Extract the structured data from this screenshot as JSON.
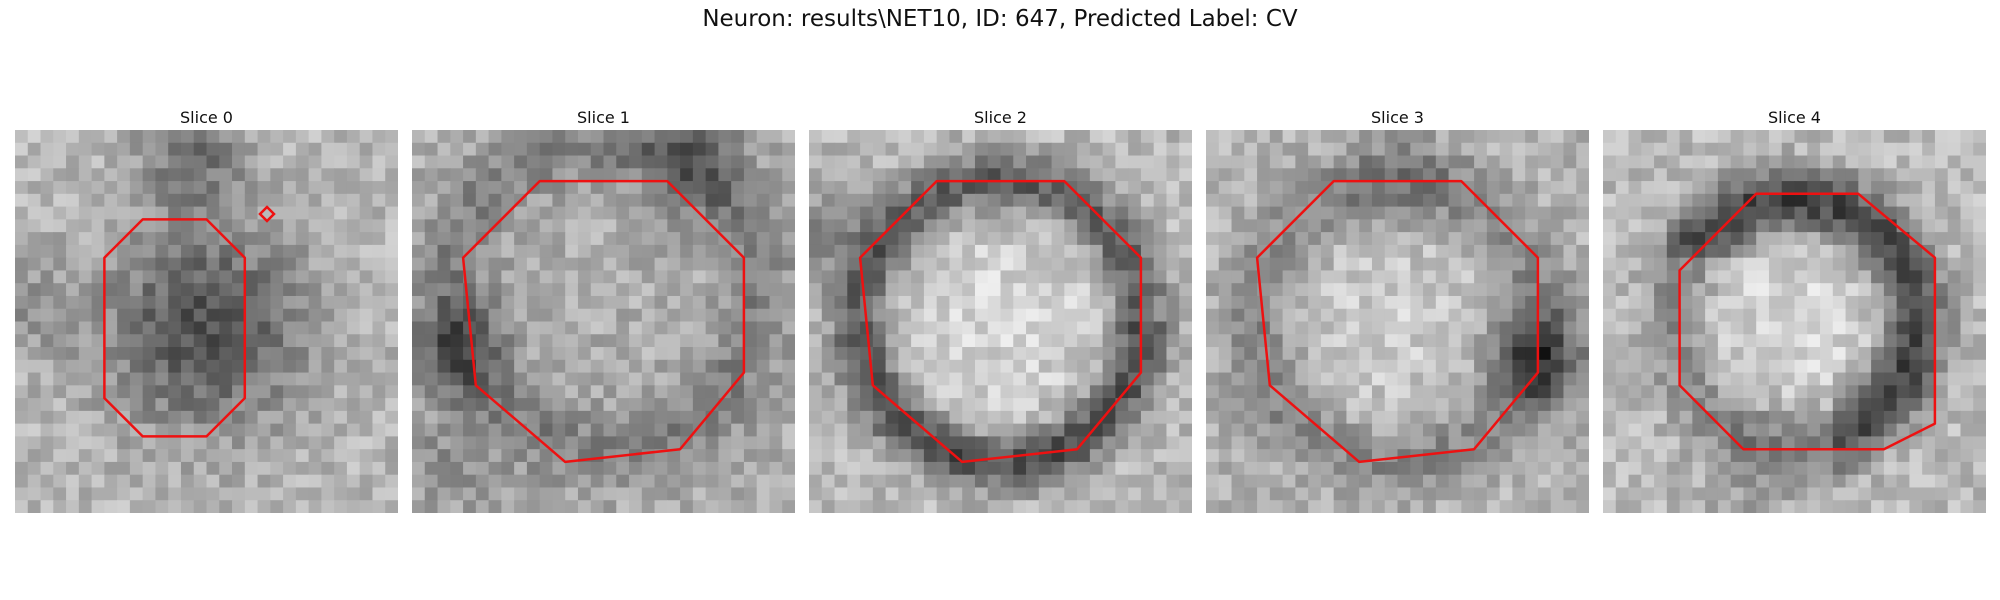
{
  "figure": {
    "title": "Neuron: results\\NET10, ID: 647, Predicted Label: CV"
  },
  "colors": {
    "contour": "#ee1111",
    "background": "#ffffff"
  },
  "panels": [
    {
      "title": "Slice 0",
      "pattern": "dark-blob-center",
      "contour": "small-octagon"
    },
    {
      "title": "Slice 1",
      "pattern": "medium-ring",
      "contour": "large-octagon"
    },
    {
      "title": "Slice 2",
      "pattern": "dark-ring-bright-core",
      "contour": "large-octagon"
    },
    {
      "title": "Slice 3",
      "pattern": "faint-ring-right-shadow",
      "contour": "large-octagon"
    },
    {
      "title": "Slice 4",
      "pattern": "dark-crescent-ring",
      "contour": "medium-octagon"
    }
  ]
}
